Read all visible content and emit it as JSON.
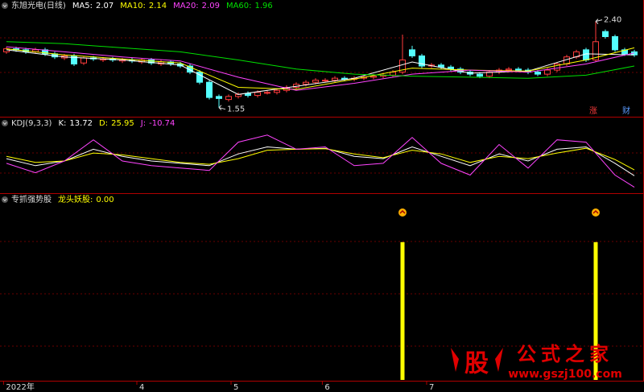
{
  "chart_data": [
    {
      "type": "candlestick",
      "title": "东旭光电(日线)",
      "open": [
        2.1,
        2.13,
        2.12,
        2.1,
        2.12,
        2.08,
        2.04,
        2.06,
        1.99,
        2.04,
        2.02,
        2.03,
        2.01,
        2.02,
        2.0,
        2.02,
        1.98,
        2.0,
        1.98,
        1.96,
        1.9,
        1.8,
        1.66,
        1.63,
        1.66,
        1.69,
        1.67,
        1.7,
        1.7,
        1.72,
        1.75,
        1.78,
        1.8,
        1.82,
        1.82,
        1.84,
        1.83,
        1.84,
        1.85,
        1.86,
        1.87,
        1.9,
        2.12,
        2.06,
        1.96,
        1.97,
        1.95,
        1.93,
        1.9,
        1.88,
        1.86,
        1.9,
        1.92,
        1.93,
        1.92,
        1.9,
        1.88,
        1.92,
        1.98,
        2.05,
        2.12,
        2.02,
        2.3,
        2.25,
        2.12,
        2.1
      ],
      "high": [
        2.15,
        2.15,
        2.14,
        2.14,
        2.14,
        2.1,
        2.08,
        2.08,
        2.06,
        2.06,
        2.05,
        2.05,
        2.04,
        2.04,
        2.04,
        2.04,
        2.02,
        2.02,
        2.0,
        1.98,
        1.92,
        1.82,
        1.68,
        1.68,
        1.7,
        1.71,
        1.72,
        1.72,
        1.74,
        1.77,
        1.8,
        1.82,
        1.84,
        1.84,
        1.86,
        1.86,
        1.86,
        1.87,
        1.88,
        1.89,
        1.92,
        2.27,
        2.16,
        2.08,
        1.99,
        1.99,
        1.97,
        1.95,
        1.92,
        1.9,
        1.92,
        1.94,
        1.95,
        1.95,
        1.94,
        1.92,
        1.94,
        2.0,
        2.07,
        2.12,
        2.14,
        2.4,
        2.32,
        2.27,
        2.14,
        2.12
      ],
      "low": [
        2.08,
        2.1,
        2.08,
        2.08,
        2.06,
        2.03,
        2.02,
        1.96,
        1.97,
        2.01,
        2.0,
        2.0,
        1.99,
        1.99,
        1.98,
        1.97,
        1.96,
        1.96,
        1.94,
        1.88,
        1.78,
        1.63,
        1.55,
        1.61,
        1.64,
        1.65,
        1.65,
        1.68,
        1.68,
        1.7,
        1.73,
        1.76,
        1.78,
        1.8,
        1.8,
        1.81,
        1.81,
        1.82,
        1.83,
        1.84,
        1.85,
        1.88,
        2.04,
        1.94,
        1.94,
        1.93,
        1.91,
        1.88,
        1.86,
        1.84,
        1.84,
        1.88,
        1.9,
        1.9,
        1.88,
        1.86,
        1.86,
        1.9,
        1.96,
        2.03,
        2.0,
        2.0,
        2.23,
        2.1,
        2.06,
        2.05
      ],
      "close": [
        2.13,
        2.12,
        2.1,
        2.12,
        2.08,
        2.05,
        2.06,
        1.98,
        2.04,
        2.03,
        2.03,
        2.02,
        2.02,
        2.01,
        2.02,
        1.99,
        2.0,
        1.98,
        1.96,
        1.9,
        1.8,
        1.65,
        1.64,
        1.66,
        1.68,
        1.67,
        1.7,
        1.7,
        1.72,
        1.75,
        1.78,
        1.8,
        1.82,
        1.82,
        1.84,
        1.83,
        1.84,
        1.85,
        1.86,
        1.87,
        1.9,
        2.02,
        2.06,
        1.96,
        1.97,
        1.95,
        1.93,
        1.9,
        1.88,
        1.86,
        1.9,
        1.92,
        1.93,
        1.92,
        1.9,
        1.88,
        1.92,
        1.98,
        2.05,
        2.1,
        2.02,
        2.2,
        2.25,
        2.12,
        2.08,
        2.07
      ],
      "up_color": "#ff3c3c",
      "down_color": "#54ffff",
      "series": [
        {
          "name": "MA5:",
          "color": "#ffffff",
          "x": [
            0,
            6,
            12,
            18,
            24,
            30,
            36,
            42,
            48,
            54,
            60,
            65
          ],
          "values": [
            2.12,
            2.05,
            2.02,
            1.97,
            1.68,
            1.76,
            1.84,
            2.0,
            1.89,
            1.91,
            2.08,
            2.07
          ]
        },
        {
          "name": "MA10:",
          "color": "#ffff00",
          "x": [
            0,
            6,
            12,
            18,
            24,
            30,
            36,
            42,
            48,
            54,
            60,
            65
          ],
          "values": [
            2.13,
            2.07,
            2.03,
            1.99,
            1.75,
            1.73,
            1.83,
            1.94,
            1.92,
            1.91,
            2.02,
            2.14
          ]
        },
        {
          "name": "MA20:",
          "color": "#ff44ff",
          "x": [
            0,
            6,
            12,
            18,
            24,
            30,
            36,
            42,
            48,
            54,
            60,
            65
          ],
          "values": [
            2.15,
            2.1,
            2.05,
            2.01,
            1.85,
            1.72,
            1.79,
            1.88,
            1.92,
            1.9,
            1.98,
            2.09
          ]
        },
        {
          "name": "MA60:",
          "color": "#00e000",
          "x": [
            0,
            6,
            12,
            18,
            24,
            30,
            36,
            42,
            48,
            54,
            60,
            65
          ],
          "values": [
            2.2,
            2.18,
            2.14,
            2.1,
            2.02,
            1.93,
            1.88,
            1.86,
            1.85,
            1.84,
            1.87,
            1.96
          ]
        }
      ],
      "annotations": [
        {
          "label": "2.40",
          "x": 61,
          "value": 2.4
        },
        {
          "label": "1.55",
          "x": 22,
          "value": 1.55
        }
      ],
      "markers": [
        {
          "label": "涨",
          "color": "#ff3c3c"
        },
        {
          "label": "财",
          "color": "#5b9bff"
        }
      ],
      "xlim": [
        -0.5,
        66
      ],
      "ylim": [
        1.5,
        2.5
      ]
    },
    {
      "type": "line",
      "title": "KDJ(9,3,3)",
      "series": [
        {
          "name": "K:",
          "color": "#ffffff",
          "x": [
            0,
            3,
            6,
            9,
            12,
            15,
            18,
            21,
            24,
            27,
            30,
            33,
            36,
            39,
            42,
            45,
            48,
            51,
            54,
            57,
            60,
            63,
            65
          ],
          "values": [
            50,
            35,
            45,
            70,
            55,
            45,
            40,
            35,
            60,
            75,
            70,
            72,
            55,
            50,
            75,
            55,
            35,
            60,
            45,
            70,
            75,
            40,
            13.72
          ]
        },
        {
          "name": "D:",
          "color": "#ffff00",
          "x": [
            0,
            3,
            6,
            9,
            12,
            15,
            18,
            21,
            24,
            27,
            30,
            33,
            36,
            39,
            42,
            45,
            48,
            51,
            54,
            57,
            60,
            63,
            65
          ],
          "values": [
            55,
            42,
            45,
            62,
            58,
            50,
            42,
            38,
            50,
            68,
            70,
            71,
            60,
            52,
            68,
            60,
            42,
            55,
            50,
            62,
            72,
            48,
            25.95
          ]
        },
        {
          "name": "J:",
          "color": "#ff44ff",
          "x": [
            0,
            3,
            6,
            9,
            12,
            15,
            18,
            21,
            24,
            27,
            30,
            33,
            36,
            39,
            42,
            45,
            48,
            51,
            54,
            57,
            60,
            63,
            65
          ],
          "values": [
            40,
            20,
            45,
            90,
            45,
            35,
            30,
            25,
            85,
            100,
            70,
            75,
            35,
            40,
            95,
            40,
            15,
            80,
            30,
            90,
            85,
            15,
            -10.74
          ]
        }
      ],
      "xlim": [
        -0.5,
        66
      ],
      "ylim": [
        -20,
        110
      ]
    },
    {
      "type": "signal",
      "title": "专抓强势股",
      "series": [
        {
          "name": "龙头妖股:",
          "color": "#ffff00",
          "x": [
            41,
            61
          ],
          "values": [
            1,
            1
          ],
          "last_value": 0,
          "last_value_label": "0.00"
        }
      ],
      "xlim": [
        -0.5,
        66
      ],
      "ylim": [
        0,
        1.25
      ],
      "xticks": [
        {
          "value": -0.3,
          "label": "2022年"
        },
        {
          "value": 13.5,
          "label": "4"
        },
        {
          "value": 23.25,
          "label": "5"
        },
        {
          "value": 32.7,
          "label": "6"
        },
        {
          "value": 43.5,
          "label": "7"
        }
      ],
      "watermark": {
        "icon": "股",
        "brand": "公式之家",
        "url": "www.gszj100.com"
      }
    }
  ]
}
